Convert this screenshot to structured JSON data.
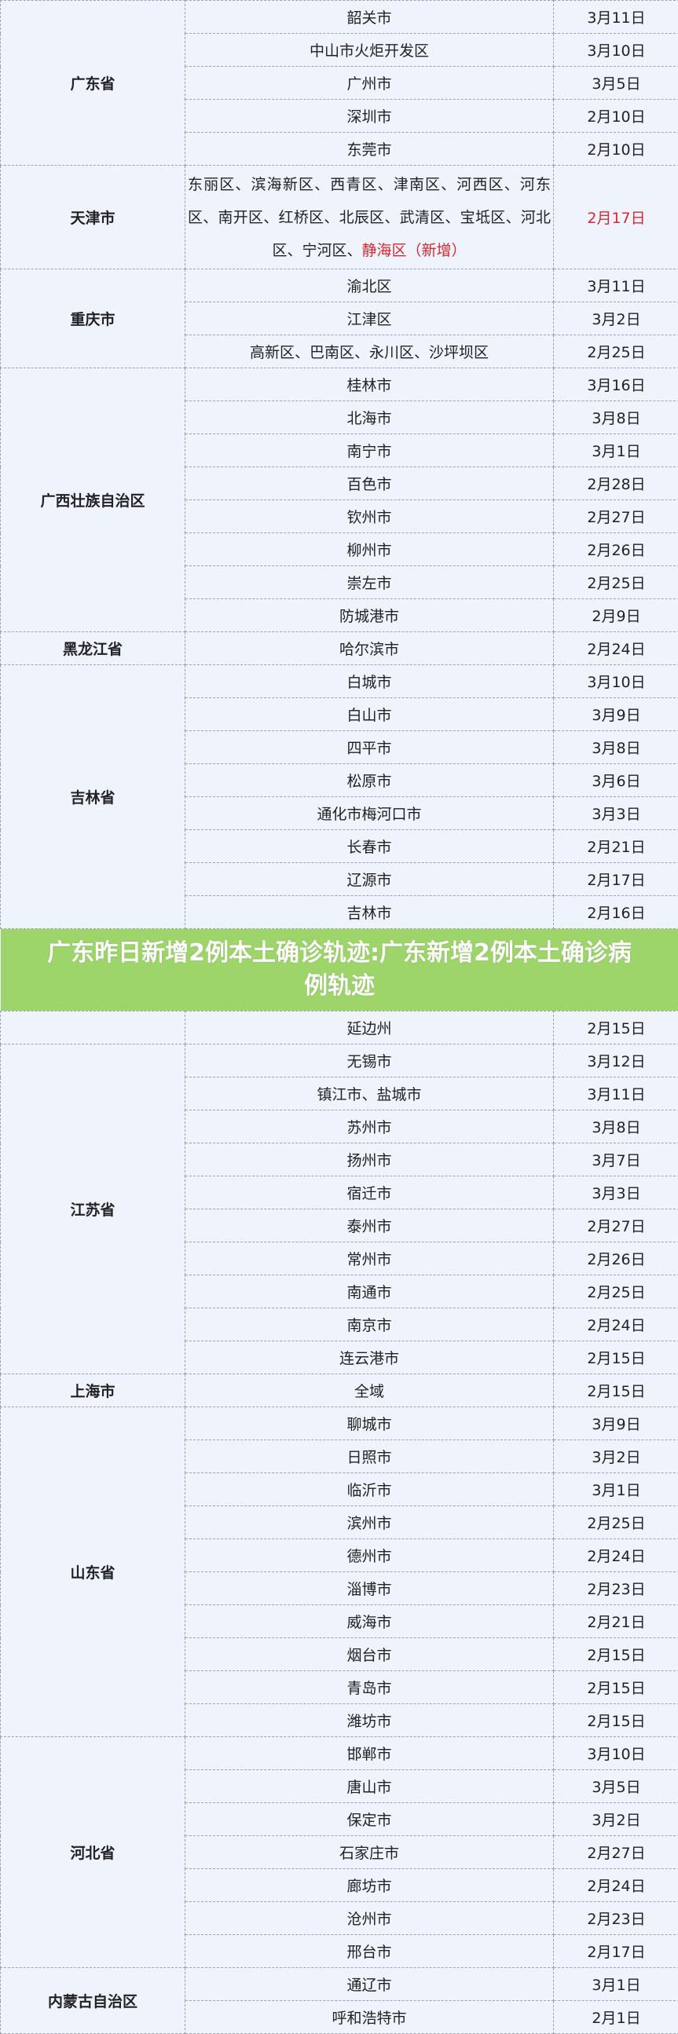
{
  "banner_title": "广东昨日新增2例本土确诊轨迹:广东新增2例本土确诊病例轨迹",
  "colors": {
    "highlight": "#d9282f",
    "banner": "#98d260",
    "background": "#eef3fc"
  },
  "groups": [
    {
      "province": "广东省",
      "rows": [
        [
          "韶关市",
          "3月11日"
        ],
        [
          "中山市火炬开发区",
          "3月10日"
        ],
        [
          "广州市",
          "3月5日"
        ],
        [
          "深圳市",
          "2月10日"
        ],
        [
          "东莞市",
          "2月10日"
        ]
      ]
    },
    {
      "province": "天津市",
      "multiline": true,
      "area_text": "东丽区、滨海新区、西青区、津南区、河西区、河东区、南开区、红桥区、北辰区、武清区、宝坻区、河北区、宁河区、",
      "area_highlight": "静海区（新增）",
      "date": "2月17日"
    },
    {
      "province": "重庆市",
      "rows": [
        [
          "渝北区",
          "3月11日"
        ],
        [
          "江津区",
          "3月2日"
        ],
        [
          "高新区、巴南区、永川区、沙坪坝区",
          "2月25日"
        ]
      ]
    },
    {
      "province": "广西壮族自治区",
      "rows": [
        [
          "桂林市",
          "3月16日"
        ],
        [
          "北海市",
          "3月8日"
        ],
        [
          "南宁市",
          "3月1日"
        ],
        [
          "百色市",
          "2月28日"
        ],
        [
          "钦州市",
          "2月27日"
        ],
        [
          "柳州市",
          "2月26日"
        ],
        [
          "崇左市",
          "2月25日"
        ],
        [
          "防城港市",
          "2月9日"
        ]
      ]
    },
    {
      "province": "黑龙江省",
      "rows": [
        [
          "哈尔滨市",
          "2月24日"
        ]
      ]
    },
    {
      "province": "吉林省",
      "rows": [
        [
          "白城市",
          "3月10日"
        ],
        [
          "白山市",
          "3月9日"
        ],
        [
          "四平市",
          "3月8日"
        ],
        [
          "松原市",
          "3月6日"
        ],
        [
          "通化市梅河口市",
          "3月3日"
        ],
        [
          "长春市",
          "2月21日"
        ],
        [
          "辽源市",
          "2月17日"
        ],
        [
          "吉林市",
          "2月16日"
        ],
        [
          "延边州",
          "2月15日"
        ]
      ]
    },
    {
      "province": "江苏省",
      "rows": [
        [
          "无锡市",
          "3月12日"
        ],
        [
          "镇江市、盐城市",
          "3月11日"
        ],
        [
          "苏州市",
          "3月8日"
        ],
        [
          "扬州市",
          "3月7日"
        ],
        [
          "宿迁市",
          "3月3日"
        ],
        [
          "泰州市",
          "2月27日"
        ],
        [
          "常州市",
          "2月26日"
        ],
        [
          "南通市",
          "2月25日"
        ],
        [
          "南京市",
          "2月24日"
        ],
        [
          "连云港市",
          "2月15日"
        ]
      ]
    },
    {
      "province": "上海市",
      "rows": [
        [
          "全域",
          "2月15日"
        ]
      ]
    },
    {
      "province": "山东省",
      "rows": [
        [
          "聊城市",
          "3月9日"
        ],
        [
          "日照市",
          "3月2日"
        ],
        [
          "临沂市",
          "3月1日"
        ],
        [
          "滨州市",
          "2月25日"
        ],
        [
          "德州市",
          "2月24日"
        ],
        [
          "淄博市",
          "2月23日"
        ],
        [
          "威海市",
          "2月21日"
        ],
        [
          "烟台市",
          "2月15日"
        ],
        [
          "青岛市",
          "2月15日"
        ],
        [
          "潍坊市",
          "2月15日"
        ]
      ]
    },
    {
      "province": "河北省",
      "rows": [
        [
          "邯郸市",
          "3月10日"
        ],
        [
          "唐山市",
          "3月5日"
        ],
        [
          "保定市",
          "3月2日"
        ],
        [
          "石家庄市",
          "2月27日"
        ],
        [
          "廊坊市",
          "2月24日"
        ],
        [
          "沧州市",
          "2月23日"
        ],
        [
          "邢台市",
          "2月17日"
        ]
      ]
    },
    {
      "province": "内蒙古自治区",
      "rows": [
        [
          "通辽市",
          "3月1日"
        ],
        [
          "呼和浩特市",
          "2月1日"
        ]
      ]
    }
  ]
}
